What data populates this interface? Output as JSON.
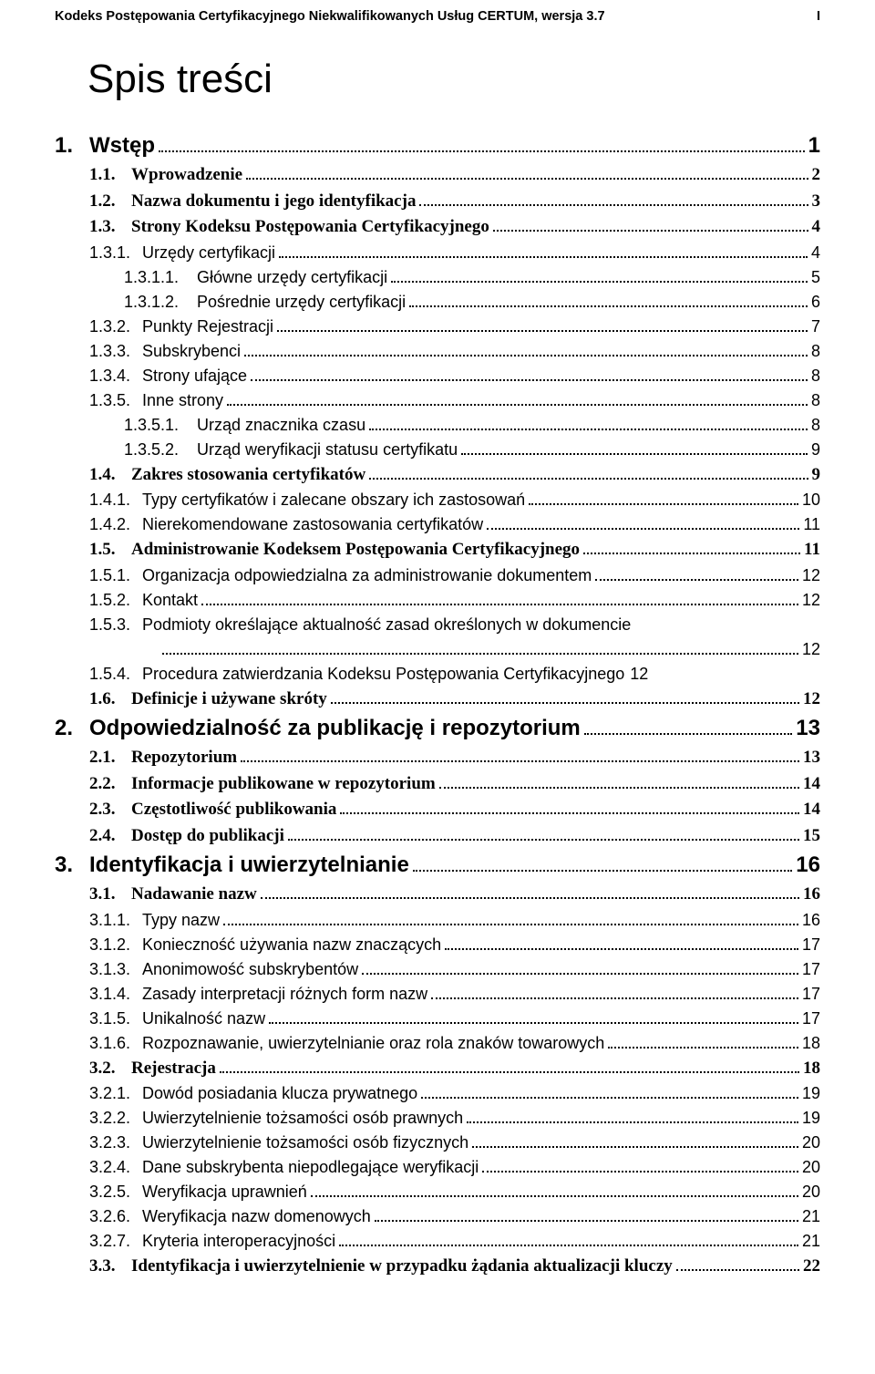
{
  "header": {
    "text": "Kodeks Postępowania Certyfikacyjnego Niekwalifikowanych Usług CERTUM, wersja 3.7",
    "page": "I"
  },
  "title": "Spis treści",
  "toc": [
    {
      "lvl": 0,
      "num": "1.",
      "label": "Wstęp",
      "pg": "1"
    },
    {
      "lvl": 1,
      "num": "1.1.",
      "label": "Wprowadzenie",
      "pg": "2"
    },
    {
      "lvl": 1,
      "num": "1.2.",
      "label": "Nazwa dokumentu i jego identyfikacja",
      "pg": "3"
    },
    {
      "lvl": 1,
      "num": "1.3.",
      "label": "Strony Kodeksu Postępowania Certyfikacyjnego",
      "pg": "4"
    },
    {
      "lvl": 2,
      "num": "1.3.1.",
      "label": "Urzędy certyfikacji",
      "pg": "4"
    },
    {
      "lvl": 3,
      "num": "1.3.1.1.",
      "label": "Główne urzędy certyfikacji",
      "pg": "5"
    },
    {
      "lvl": 3,
      "num": "1.3.1.2.",
      "label": "Pośrednie urzędy certyfikacji",
      "pg": "6"
    },
    {
      "lvl": 2,
      "num": "1.3.2.",
      "label": "Punkty Rejestracji",
      "pg": "7"
    },
    {
      "lvl": 2,
      "num": "1.3.3.",
      "label": "Subskrybenci",
      "pg": "8"
    },
    {
      "lvl": 2,
      "num": "1.3.4.",
      "label": "Strony ufające",
      "pg": "8"
    },
    {
      "lvl": 2,
      "num": "1.3.5.",
      "label": "Inne strony",
      "pg": "8"
    },
    {
      "lvl": 3,
      "num": "1.3.5.1.",
      "label": "Urząd znacznika czasu",
      "pg": "8"
    },
    {
      "lvl": 3,
      "num": "1.3.5.2.",
      "label": "Urząd weryfikacji statusu certyfikatu",
      "pg": "9"
    },
    {
      "lvl": 1,
      "num": "1.4.",
      "label": "Zakres stosowania certyfikatów",
      "pg": "9"
    },
    {
      "lvl": 2,
      "num": "1.4.1.",
      "label": "Typy certyfikatów i zalecane obszary ich zastosowań",
      "pg": "10"
    },
    {
      "lvl": 2,
      "num": "1.4.2.",
      "label": "Nierekomendowane zastosowania certyfikatów",
      "pg": "11"
    },
    {
      "lvl": 1,
      "num": "1.5.",
      "label": "Administrowanie Kodeksem Postępowania Certyfikacyjnego",
      "pg": "11"
    },
    {
      "lvl": 2,
      "num": "1.5.1.",
      "label": "Organizacja odpowiedzialna za administrowanie dokumentem",
      "pg": "12"
    },
    {
      "lvl": 2,
      "num": "1.5.2.",
      "label": "Kontakt",
      "pg": "12"
    },
    {
      "lvl": 2,
      "num": "1.5.3.",
      "label": "Podmioty określające aktualność zasad określonych w dokumencie",
      "pg": ""
    },
    {
      "lvl": 4,
      "num": "",
      "label": "",
      "pg": "12",
      "nonum": true
    },
    {
      "lvl": 2,
      "num": "1.5.4.",
      "label": "Procedura zatwierdzania Kodeksu Postępowania Certyfikacyjnego",
      "pg": "12",
      "nodots": true
    },
    {
      "lvl": 1,
      "num": "1.6.",
      "label": "Definicje i używane skróty",
      "pg": "12"
    },
    {
      "lvl": 0,
      "num": "2.",
      "label": "Odpowiedzialność za publikację i repozytorium",
      "pg": "13"
    },
    {
      "lvl": 1,
      "num": "2.1.",
      "label": "Repozytorium",
      "pg": "13"
    },
    {
      "lvl": 1,
      "num": "2.2.",
      "label": "Informacje publikowane w repozytorium",
      "pg": "14"
    },
    {
      "lvl": 1,
      "num": "2.3.",
      "label": "Częstotliwość publikowania",
      "pg": "14"
    },
    {
      "lvl": 1,
      "num": "2.4.",
      "label": "Dostęp do publikacji",
      "pg": "15"
    },
    {
      "lvl": 0,
      "num": "3.",
      "label": "Identyfikacja i uwierzytelnianie",
      "pg": "16"
    },
    {
      "lvl": 1,
      "num": "3.1.",
      "label": "Nadawanie nazw",
      "pg": "16"
    },
    {
      "lvl": 2,
      "num": "3.1.1.",
      "label": "Typy nazw",
      "pg": "16"
    },
    {
      "lvl": 2,
      "num": "3.1.2.",
      "label": "Konieczność używania nazw znaczących",
      "pg": "17"
    },
    {
      "lvl": 2,
      "num": "3.1.3.",
      "label": "Anonimowość subskrybentów",
      "pg": "17"
    },
    {
      "lvl": 2,
      "num": "3.1.4.",
      "label": "Zasady interpretacji różnych form nazw",
      "pg": "17"
    },
    {
      "lvl": 2,
      "num": "3.1.5.",
      "label": "Unikalność nazw",
      "pg": "17"
    },
    {
      "lvl": 2,
      "num": "3.1.6.",
      "label": "Rozpoznawanie, uwierzytelnianie oraz rola znaków towarowych",
      "pg": "18"
    },
    {
      "lvl": 1,
      "num": "3.2.",
      "label": "Rejestracja",
      "pg": "18"
    },
    {
      "lvl": 2,
      "num": "3.2.1.",
      "label": "Dowód posiadania klucza prywatnego",
      "pg": "19"
    },
    {
      "lvl": 2,
      "num": "3.2.2.",
      "label": "Uwierzytelnienie tożsamości osób prawnych",
      "pg": "19"
    },
    {
      "lvl": 2,
      "num": "3.2.3.",
      "label": "Uwierzytelnienie tożsamości osób fizycznych",
      "pg": "20"
    },
    {
      "lvl": 2,
      "num": "3.2.4.",
      "label": "Dane subskrybenta niepodlegające weryfikacji",
      "pg": "20"
    },
    {
      "lvl": 2,
      "num": "3.2.5.",
      "label": "Weryfikacja uprawnień",
      "pg": "20"
    },
    {
      "lvl": 2,
      "num": "3.2.6.",
      "label": "Weryfikacja nazw domenowych",
      "pg": "21"
    },
    {
      "lvl": 2,
      "num": "3.2.7.",
      "label": "Kryteria interoperacyjności",
      "pg": "21"
    },
    {
      "lvl": 1,
      "num": "3.3.",
      "label": "Identyfikacja i uwierzytelnienie w przypadku żądania aktualizacji kluczy",
      "pg": "22"
    }
  ]
}
